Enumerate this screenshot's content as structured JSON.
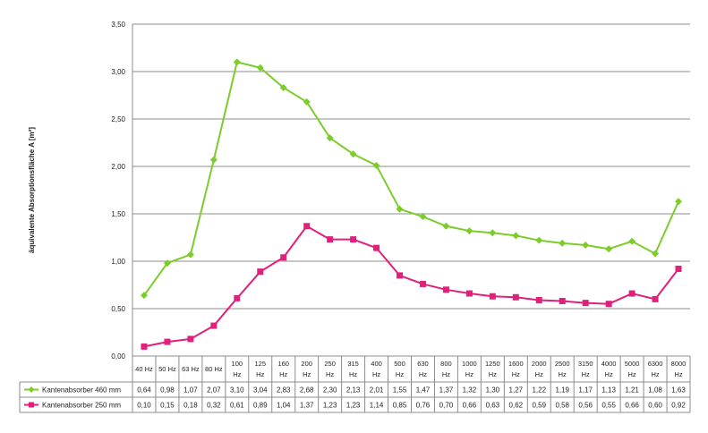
{
  "chart_data": {
    "type": "line",
    "ylabel": "äquivalente Absorptionsfläche A [m²]",
    "ylim": [
      0,
      3.5
    ],
    "yticks": [
      "0,00",
      "0,50",
      "1,00",
      "1,50",
      "2,00",
      "2,50",
      "3,00",
      "3,50"
    ],
    "grid": true,
    "legend": "data table below chart",
    "categories": [
      [
        "40 Hz"
      ],
      [
        "50 Hz"
      ],
      [
        "63 Hz"
      ],
      [
        "80 Hz"
      ],
      [
        "100",
        "Hz"
      ],
      [
        "125",
        "Hz"
      ],
      [
        "160",
        "Hz"
      ],
      [
        "200",
        "Hz"
      ],
      [
        "250",
        "Hz"
      ],
      [
        "315",
        "Hz"
      ],
      [
        "400",
        "Hz"
      ],
      [
        "500",
        "Hz"
      ],
      [
        "630",
        "Hz"
      ],
      [
        "800",
        "Hz"
      ],
      [
        "1000",
        "Hz"
      ],
      [
        "1250",
        "Hz"
      ],
      [
        "1600",
        "Hz"
      ],
      [
        "2000",
        "Hz"
      ],
      [
        "2500",
        "Hz"
      ],
      [
        "3150",
        "Hz"
      ],
      [
        "4000",
        "Hz"
      ],
      [
        "5000",
        "Hz"
      ],
      [
        "6300",
        "Hz"
      ],
      [
        "8000",
        "Hz"
      ]
    ],
    "series": [
      {
        "name": "Kantenabsorber 460 mm",
        "color": "#7ccc2a",
        "marker": "diamond",
        "values": [
          0.64,
          0.98,
          1.07,
          2.07,
          3.1,
          3.04,
          2.83,
          2.68,
          2.3,
          2.13,
          2.01,
          1.55,
          1.47,
          1.37,
          1.32,
          1.3,
          1.27,
          1.22,
          1.19,
          1.17,
          1.13,
          1.21,
          1.08,
          1.63
        ],
        "labels": [
          "0,64",
          "0,98",
          "1,07",
          "2,07",
          "3,10",
          "3,04",
          "2,83",
          "2,68",
          "2,30",
          "2,13",
          "2,01",
          "1,55",
          "1,47",
          "1,37",
          "1,32",
          "1,30",
          "1,27",
          "1,22",
          "1,19",
          "1,17",
          "1,13",
          "1,21",
          "1,08",
          "1,63"
        ]
      },
      {
        "name": "Kantenabsorber 250 mm",
        "color": "#e0207a",
        "marker": "square",
        "values": [
          0.1,
          0.15,
          0.18,
          0.32,
          0.61,
          0.89,
          1.04,
          1.37,
          1.23,
          1.23,
          1.14,
          0.85,
          0.76,
          0.7,
          0.66,
          0.63,
          0.62,
          0.59,
          0.58,
          0.56,
          0.55,
          0.66,
          0.6,
          0.92
        ],
        "labels": [
          "0,10",
          "0,15",
          "0,18",
          "0,32",
          "0,61",
          "0,89",
          "1,04",
          "1,37",
          "1,23",
          "1,23",
          "1,14",
          "0,85",
          "0,76",
          "0,70",
          "0,66",
          "0,63",
          "0,62",
          "0,59",
          "0,58",
          "0,56",
          "0,55",
          "0,66",
          "0,60",
          "0,92"
        ]
      }
    ]
  }
}
